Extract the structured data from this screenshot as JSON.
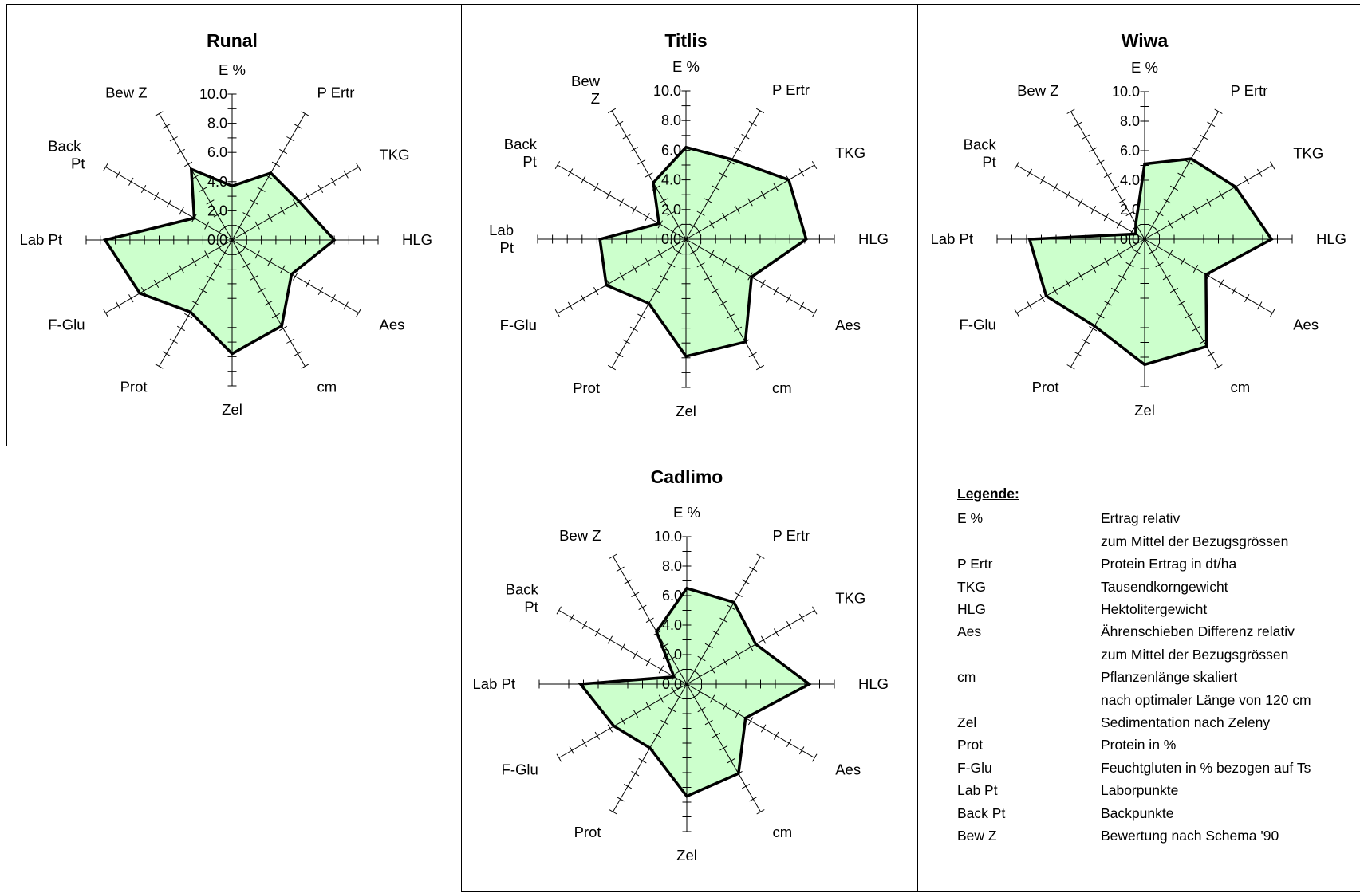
{
  "chart_data": [
    {
      "type": "radar",
      "title": "Runal",
      "axes": [
        "E %",
        "P Ertr",
        "TKG",
        "HLG",
        "Aes",
        "cm",
        "Zel",
        "Prot",
        "F-Glu",
        "Lab Pt",
        "Back Pt",
        "Bew Z"
      ],
      "axis_labels": [
        [
          "E %"
        ],
        [
          "P Ertr"
        ],
        [
          "TKG"
        ],
        [
          "HLG"
        ],
        [
          "Aes"
        ],
        [
          "cm"
        ],
        [
          "Zel"
        ],
        [
          "Prot"
        ],
        [
          "F-Glu"
        ],
        [
          "Lab Pt"
        ],
        [
          "Back ",
          "Pt"
        ],
        [
          "Bew Z"
        ]
      ],
      "ticks": [
        "0.0",
        "2.0",
        "4.0",
        "6.0",
        "8.0",
        "10.0"
      ],
      "range": [
        0,
        10
      ],
      "values": [
        3.7,
        5.3,
        5.3,
        7.0,
        4.7,
        6.8,
        7.8,
        5.7,
        7.3,
        8.7,
        3.0,
        5.6
      ],
      "fill_color": "#ccffcc",
      "line_color": "#000000"
    },
    {
      "type": "radar",
      "title": "Titlis",
      "axes": [
        "E %",
        "P Ertr",
        "TKG",
        "HLG",
        "Aes",
        "cm",
        "Zel",
        "Prot",
        "F-Glu",
        "Lab Pt",
        "Back Pt",
        "Bew Z"
      ],
      "axis_labels": [
        [
          "E %"
        ],
        [
          "P Ertr"
        ],
        [
          "TKG"
        ],
        [
          "HLG"
        ],
        [
          "Aes"
        ],
        [
          "cm"
        ],
        [
          "Zel"
        ],
        [
          "Prot"
        ],
        [
          "F-Glu"
        ],
        [
          "Lab",
          "Pt"
        ],
        [
          "Back",
          "Pt"
        ],
        [
          "Bew",
          "Z"
        ]
      ],
      "ticks": [
        "0.0",
        "2.0",
        "4.0",
        "6.0",
        "8.0",
        "10.0"
      ],
      "range": [
        0,
        10
      ],
      "values": [
        6.2,
        6.2,
        8.0,
        8.1,
        5.1,
        8.0,
        7.9,
        5.0,
        6.2,
        5.8,
        2.1,
        4.4
      ],
      "fill_color": "#ccffcc",
      "line_color": "#000000"
    },
    {
      "type": "radar",
      "title": "Wiwa",
      "axes": [
        "E %",
        "P Ertr",
        "TKG",
        "HLG",
        "Aes",
        "cm",
        "Zel",
        "Prot",
        "F-Glu",
        "Lab Pt",
        "Back Pt",
        "Bew Z"
      ],
      "axis_labels": [
        [
          "E %"
        ],
        [
          "P Ertr"
        ],
        [
          "TKG"
        ],
        [
          "HLG"
        ],
        [
          "Aes"
        ],
        [
          "cm"
        ],
        [
          "Zel"
        ],
        [
          "Prot"
        ],
        [
          "F-Glu"
        ],
        [
          "Lab Pt"
        ],
        [
          "Back",
          "Pt"
        ],
        [
          "Bew Z"
        ]
      ],
      "ticks": [
        "0.0",
        "2.0",
        "4.0",
        "6.0",
        "8.0",
        "10.0"
      ],
      "range": [
        0,
        10
      ],
      "values": [
        5.1,
        6.3,
        7.1,
        8.6,
        4.8,
        8.4,
        8.5,
        6.8,
        7.7,
        7.8,
        0.7,
        1.2
      ],
      "fill_color": "#ccffcc",
      "line_color": "#000000"
    },
    {
      "type": "radar",
      "title": "Cadlimo",
      "axes": [
        "E %",
        "P Ertr",
        "TKG",
        "HLG",
        "Aes",
        "cm",
        "Zel",
        "Prot",
        "F-Glu",
        "Lab Pt",
        "Back Pt",
        "Bew Z"
      ],
      "axis_labels": [
        [
          "E %"
        ],
        [
          "P Ertr"
        ],
        [
          "TKG"
        ],
        [
          "HLG"
        ],
        [
          "Aes"
        ],
        [
          "cm"
        ],
        [
          "Zel"
        ],
        [
          "Prot"
        ],
        [
          "F-Glu"
        ],
        [
          "Lab Pt"
        ],
        [
          "Back",
          "Pt"
        ],
        [
          "Bew Z"
        ]
      ],
      "ticks": [
        "0.0",
        "2.0",
        "4.0",
        "6.0",
        "8.0",
        "10.0"
      ],
      "range": [
        0,
        10
      ],
      "values": [
        6.5,
        6.4,
        5.4,
        8.3,
        4.6,
        7.0,
        7.6,
        5.0,
        5.7,
        7.2,
        1.0,
        4.1
      ],
      "fill_color": "#ccffcc",
      "line_color": "#000000"
    }
  ],
  "legend": {
    "title": "Legende:",
    "rows": [
      {
        "key": "E %",
        "desc": "Ertrag relativ"
      },
      {
        "key": "",
        "desc": "zum Mittel der Bezugsgrössen"
      },
      {
        "key": "P Ertr",
        "desc": "Protein Ertrag in dt/ha"
      },
      {
        "key": "TKG",
        "desc": "Tausendkorngewicht"
      },
      {
        "key": "HLG",
        "desc": "Hektolitergewicht"
      },
      {
        "key": "Aes",
        "desc": "Ährenschieben Differenz relativ"
      },
      {
        "key": "",
        "desc": "zum Mittel der Bezugsgrössen"
      },
      {
        "key": "cm",
        "desc": "Pflanzenlänge skaliert"
      },
      {
        "key": "",
        "desc": "nach optimaler Länge von 120 cm"
      },
      {
        "key": "Zel",
        "desc": "Sedimentation nach Zeleny"
      },
      {
        "key": "Prot",
        "desc": "Protein in %"
      },
      {
        "key": "F-Glu",
        "desc": "Feuchtgluten in % bezogen auf Ts"
      },
      {
        "key": "Lab Pt",
        "desc": "Laborpunkte"
      },
      {
        "key": "Back Pt",
        "desc": "Backpunkte"
      },
      {
        "key": "Bew Z",
        "desc": "Bewertung nach Schema '90"
      }
    ]
  }
}
